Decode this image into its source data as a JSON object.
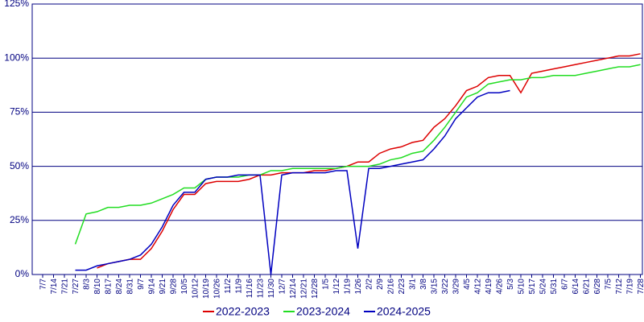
{
  "chart_data": {
    "type": "line",
    "categories": [
      "7/7",
      "7/14",
      "7/21",
      "7/27",
      "8/3",
      "8/10",
      "8/17",
      "8/24",
      "8/31",
      "9/7",
      "9/14",
      "9/21",
      "9/28",
      "10/5",
      "10/12",
      "10/19",
      "10/26",
      "11/2",
      "11/9",
      "11/16",
      "11/23",
      "11/30",
      "12/7",
      "12/14",
      "12/21",
      "12/28",
      "1/5",
      "1/12",
      "1/19",
      "1/26",
      "2/2",
      "2/9",
      "2/16",
      "2/23",
      "3/1",
      "3/8",
      "3/15",
      "3/22",
      "3/29",
      "4/5",
      "4/12",
      "4/19",
      "4/26",
      "5/3",
      "5/10",
      "5/17",
      "5/24",
      "5/31",
      "6/7",
      "6/14",
      "6/21",
      "6/28",
      "7/5",
      "7/12",
      "7/19",
      "7/28"
    ],
    "series": [
      {
        "name": "2022-2023",
        "color": "#dd0000",
        "values": [
          null,
          null,
          null,
          null,
          null,
          3,
          5,
          6,
          7,
          7,
          12,
          20,
          30,
          37,
          37,
          42,
          43,
          43,
          43,
          44,
          46,
          46,
          47,
          47,
          47,
          48,
          48,
          49,
          50,
          52,
          52,
          56,
          58,
          59,
          61,
          62,
          68,
          72,
          78,
          85,
          87,
          91,
          92,
          92,
          84,
          93,
          94,
          95,
          96,
          97,
          98,
          99,
          100,
          101,
          101,
          102
        ]
      },
      {
        "name": "2023-2024",
        "color": "#22dd22",
        "values": [
          null,
          null,
          null,
          14,
          28,
          29,
          31,
          31,
          32,
          32,
          33,
          35,
          37,
          40,
          40,
          44,
          45,
          45,
          45,
          46,
          46,
          48,
          48,
          49,
          49,
          49,
          49,
          49,
          50,
          50,
          50,
          51,
          53,
          54,
          56,
          57,
          62,
          68,
          75,
          82,
          84,
          88,
          89,
          90,
          90,
          91,
          91,
          92,
          92,
          92,
          93,
          94,
          95,
          96,
          96,
          97
        ]
      },
      {
        "name": "2024-2025",
        "color": "#0000c0",
        "values": [
          null,
          null,
          null,
          2,
          2,
          4,
          5,
          6,
          7,
          9,
          14,
          22,
          32,
          38,
          38,
          44,
          45,
          45,
          46,
          46,
          46,
          0,
          46,
          47,
          47,
          47,
          47,
          48,
          48,
          12,
          49,
          49,
          50,
          51,
          52,
          53,
          58,
          64,
          72,
          77,
          82,
          84,
          84,
          85,
          null,
          null,
          null,
          null,
          null,
          null,
          null,
          null,
          null,
          null,
          null,
          null
        ]
      }
    ],
    "ylim": [
      0,
      125
    ],
    "yticks": [
      {
        "value": 0,
        "label": "0%"
      },
      {
        "value": 25,
        "label": "25%"
      },
      {
        "value": 50,
        "label": "50%"
      },
      {
        "value": 75,
        "label": "75%"
      },
      {
        "value": 100,
        "label": "100%"
      },
      {
        "value": 125,
        "label": "125%"
      }
    ],
    "grid": true
  }
}
